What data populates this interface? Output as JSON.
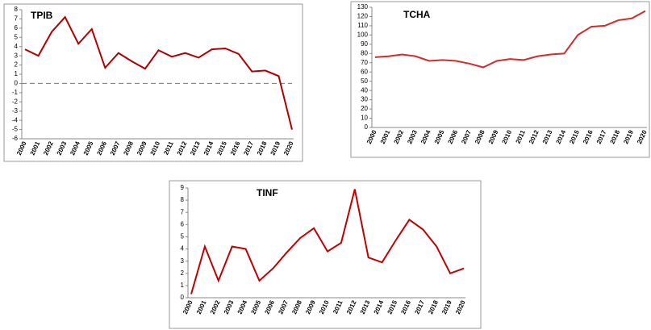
{
  "chart_data": [
    {
      "type": "line",
      "title": "TPIB",
      "categories": [
        "2000",
        "2001",
        "2002",
        "2003",
        "2004",
        "2005",
        "2006",
        "2007",
        "2008",
        "2009",
        "2010",
        "2011",
        "2012",
        "2013",
        "2014",
        "2015",
        "2016",
        "2017",
        "2018",
        "2019",
        "2020"
      ],
      "values": [
        3.7,
        3.0,
        5.6,
        7.2,
        4.3,
        5.9,
        1.7,
        3.3,
        2.4,
        1.6,
        3.6,
        2.9,
        3.3,
        2.8,
        3.7,
        3.8,
        3.2,
        1.3,
        1.4,
        0.8,
        -5.0
      ],
      "color": "#b00000",
      "ylim": [
        -6,
        8
      ],
      "yticks": [
        -6,
        -5,
        -4,
        -3,
        -2,
        -1,
        0,
        1,
        2,
        3,
        4,
        5,
        6,
        7,
        8
      ],
      "zero_line": true
    },
    {
      "type": "line",
      "title": "TCHA",
      "categories": [
        "2000",
        "2001",
        "2002",
        "2003",
        "2004",
        "2005",
        "2006",
        "2007",
        "2008",
        "2009",
        "2010",
        "2011",
        "2012",
        "2013",
        "2014",
        "2015",
        "2016",
        "2017",
        "2018",
        "2019",
        "2020"
      ],
      "values": [
        76,
        77,
        79,
        77,
        72,
        73,
        72,
        69,
        65,
        72,
        74,
        73,
        77,
        79,
        80,
        100,
        109,
        110,
        116,
        118,
        126
      ],
      "color": "#d42a2a",
      "ylim": [
        0,
        130
      ],
      "yticks": [
        0,
        10,
        20,
        30,
        40,
        50,
        60,
        70,
        80,
        90,
        100,
        110,
        120,
        130
      ],
      "zero_line": false
    },
    {
      "type": "line",
      "title": "TINF",
      "categories": [
        "2000",
        "2001",
        "2002",
        "2003",
        "2004",
        "2005",
        "2006",
        "2007",
        "2008",
        "2009",
        "2010",
        "2011",
        "2012",
        "2013",
        "2014",
        "2015",
        "2016",
        "2017",
        "2018",
        "2019",
        "2020"
      ],
      "values": [
        0.3,
        4.2,
        1.4,
        4.2,
        4.0,
        1.4,
        2.4,
        3.7,
        4.9,
        5.7,
        3.8,
        4.5,
        8.9,
        3.3,
        2.9,
        4.7,
        6.4,
        5.6,
        4.2,
        2.0,
        2.4
      ],
      "color": "#c00000",
      "ylim": [
        0,
        9
      ],
      "yticks": [
        0,
        1,
        2,
        3,
        4,
        5,
        6,
        7,
        8,
        9
      ],
      "zero_line": false
    }
  ]
}
